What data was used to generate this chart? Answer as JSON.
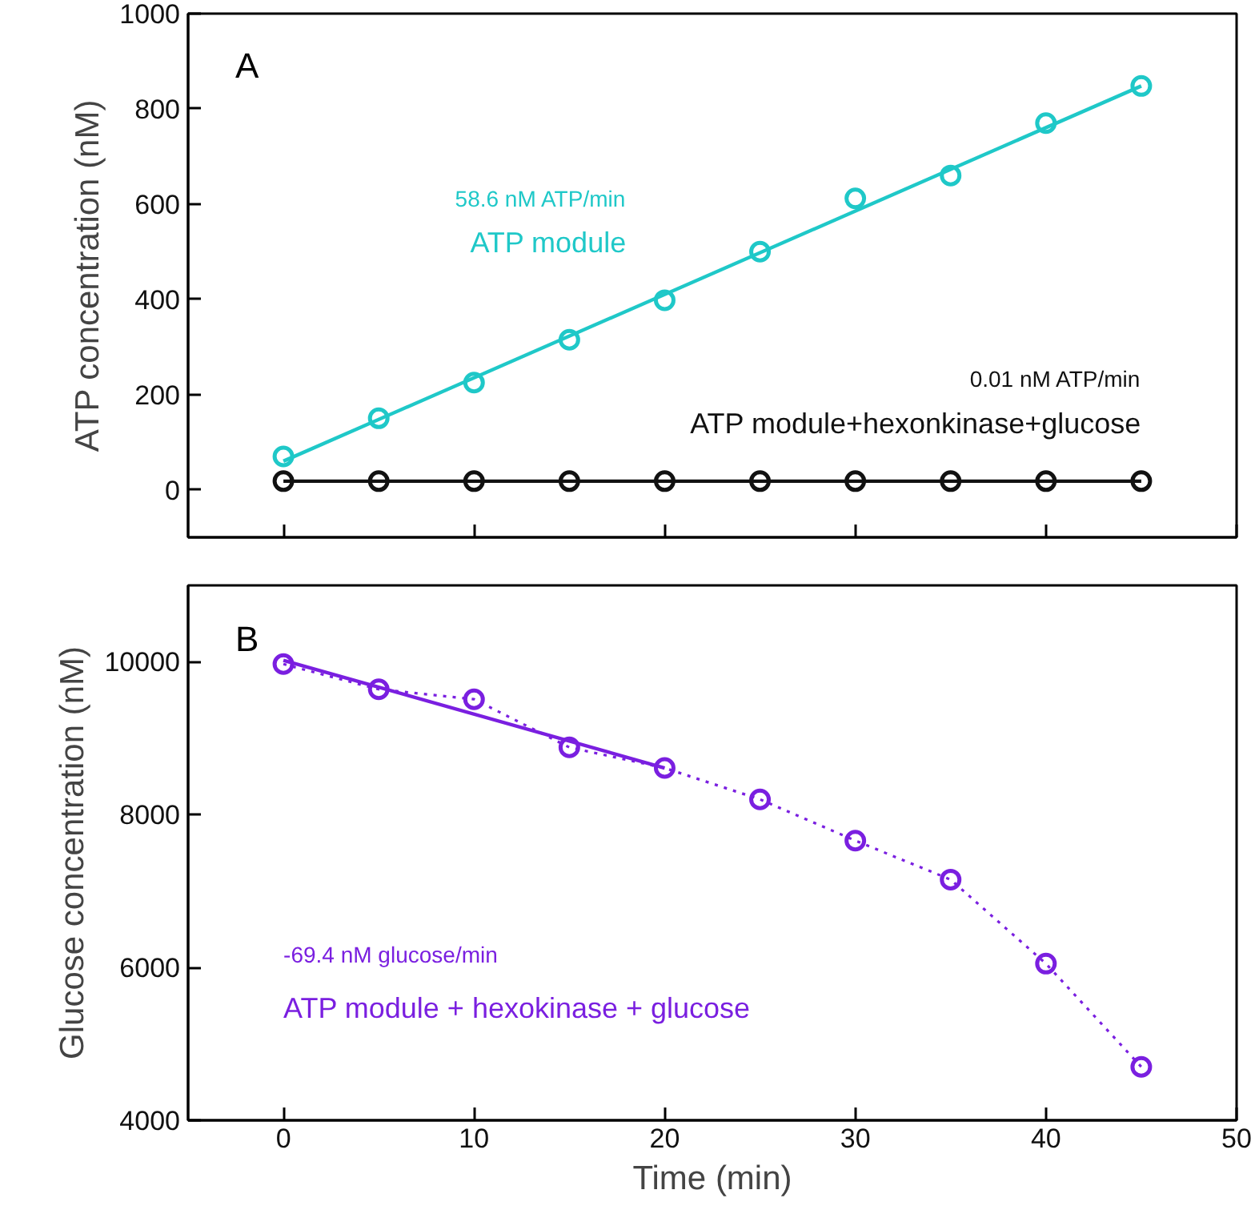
{
  "chart_data": [
    {
      "type": "scatter",
      "ylabel": "ATP concentration (nM)",
      "xlim": [
        -5,
        50
      ],
      "xticks": [
        0,
        10,
        20,
        30,
        40,
        50
      ],
      "ylim": [
        -100,
        1000
      ],
      "yticks": [
        0,
        200,
        400,
        600,
        800,
        1000
      ],
      "tick_labels": "y",
      "grid": false,
      "marker": "circle",
      "annotations": [
        "A",
        "58.6 nM ATP/min",
        "0.01 nM ATP/min"
      ],
      "x": [
        0,
        5,
        10,
        15,
        20,
        25,
        30,
        35,
        40,
        45
      ],
      "series": [
        {
          "color": "#1fc8c8",
          "values": [
            70,
            150,
            225,
            315,
            398,
            500,
            612,
            660,
            770,
            848
          ]
        },
        {
          "color": "#111111",
          "values": [
            18,
            18,
            18,
            18,
            18,
            18,
            18,
            18,
            18,
            18
          ]
        },
        {
          "type": "line",
          "name": "ATP module",
          "marker": "none",
          "color": "#1fc8c8",
          "x": [
            0,
            45
          ],
          "values": [
            60,
            848
          ]
        },
        {
          "type": "line",
          "name": "ATP module+hexonkinase+glucose",
          "marker": "none",
          "color": "#111111",
          "x": [
            0,
            45
          ],
          "values": [
            18,
            18
          ]
        }
      ]
    },
    {
      "type": "line",
      "xlabel": "Time (min)",
      "ylabel": "Glucose concentration (nM)",
      "xlim": [
        -5,
        50
      ],
      "xticks": [
        0,
        10,
        20,
        30,
        40,
        50
      ],
      "ylim": [
        4000,
        11000
      ],
      "yticks": [
        4000,
        6000,
        8000,
        10000
      ],
      "grid": false,
      "marker": "circle",
      "annotations": [
        "B",
        "-69.4 nM glucose/min"
      ],
      "x": [
        0,
        5,
        10,
        15,
        20,
        25,
        30,
        35,
        40,
        45
      ],
      "series": [
        {
          "line_style": "dotted",
          "color": "#7a1fe0",
          "values": [
            9970,
            9640,
            9510,
            8880,
            8610,
            8200,
            7660,
            7150,
            6050,
            4700
          ]
        },
        {
          "name": "ATP module + hexokinase + glucose",
          "marker": "none",
          "line_style": "solid",
          "color": "#7a1fe0",
          "x": [
            0,
            20
          ],
          "values": [
            10020,
            8610
          ]
        }
      ]
    }
  ]
}
